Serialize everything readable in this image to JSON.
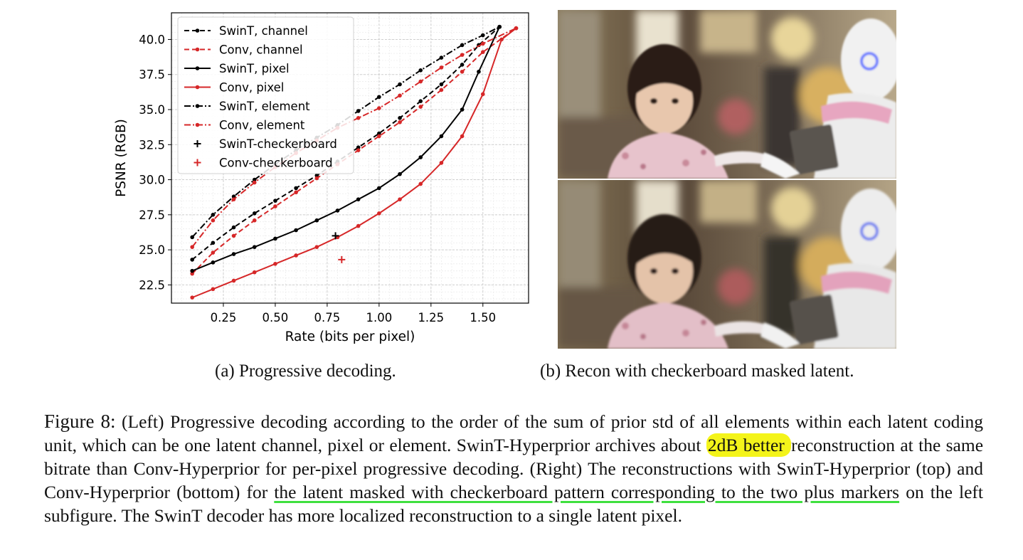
{
  "chart_data": {
    "type": "line",
    "xlabel": "Rate (bits per pixel)",
    "ylabel": "PSNR (RGB)",
    "xlim": [
      0.0,
      1.72
    ],
    "ylim": [
      21.2,
      41.9
    ],
    "xticks": [
      "0.25",
      "0.50",
      "0.75",
      "1.00",
      "1.25",
      "1.50"
    ],
    "yticks": [
      "22.5",
      "25.0",
      "27.5",
      "30.0",
      "32.5",
      "35.0",
      "37.5",
      "40.0"
    ],
    "grid": true,
    "legend_position": "top-left",
    "series": [
      {
        "name": "SwinT, channel",
        "color": "#000000",
        "dash": "dashed",
        "x": [
          0.1,
          0.2,
          0.3,
          0.4,
          0.5,
          0.6,
          0.7,
          0.8,
          0.9,
          1.0,
          1.1,
          1.2,
          1.3,
          1.4,
          1.48,
          1.58
        ],
        "y": [
          24.3,
          25.5,
          26.6,
          27.6,
          28.5,
          29.4,
          30.3,
          31.3,
          32.3,
          33.3,
          34.4,
          35.6,
          36.8,
          38.2,
          39.6,
          40.9
        ]
      },
      {
        "name": "Conv, channel",
        "color": "#d62728",
        "dash": "dashed",
        "x": [
          0.1,
          0.2,
          0.3,
          0.4,
          0.5,
          0.6,
          0.7,
          0.8,
          0.9,
          1.0,
          1.1,
          1.2,
          1.3,
          1.4,
          1.5,
          1.66
        ],
        "y": [
          23.3,
          24.8,
          26.0,
          27.1,
          28.1,
          29.1,
          30.1,
          31.1,
          32.1,
          33.1,
          34.1,
          35.2,
          36.4,
          37.7,
          39.1,
          40.8
        ]
      },
      {
        "name": "SwinT, pixel",
        "color": "#000000",
        "dash": "solid",
        "x": [
          0.1,
          0.2,
          0.3,
          0.4,
          0.5,
          0.6,
          0.7,
          0.8,
          0.9,
          1.0,
          1.1,
          1.2,
          1.3,
          1.4,
          1.48,
          1.58
        ],
        "y": [
          23.5,
          24.1,
          24.7,
          25.2,
          25.8,
          26.4,
          27.1,
          27.8,
          28.6,
          29.4,
          30.4,
          31.6,
          33.1,
          35.0,
          37.7,
          40.9
        ]
      },
      {
        "name": "Conv, pixel",
        "color": "#d62728",
        "dash": "solid",
        "x": [
          0.1,
          0.2,
          0.3,
          0.4,
          0.5,
          0.6,
          0.7,
          0.8,
          0.9,
          1.0,
          1.1,
          1.2,
          1.3,
          1.4,
          1.5,
          1.59,
          1.66
        ],
        "y": [
          21.6,
          22.2,
          22.8,
          23.4,
          24.0,
          24.6,
          25.2,
          25.9,
          26.7,
          27.6,
          28.6,
          29.7,
          31.2,
          33.1,
          36.1,
          40.0,
          40.8
        ]
      },
      {
        "name": "SwinT, element",
        "color": "#000000",
        "dash": "dashdot",
        "x": [
          0.1,
          0.2,
          0.3,
          0.4,
          0.5,
          0.6,
          0.7,
          0.8,
          0.9,
          1.0,
          1.1,
          1.2,
          1.3,
          1.4,
          1.5,
          1.58
        ],
        "y": [
          25.9,
          27.5,
          28.8,
          30.0,
          31.1,
          32.1,
          33.0,
          33.9,
          34.9,
          35.9,
          36.8,
          37.8,
          38.7,
          39.6,
          40.3,
          40.9
        ]
      },
      {
        "name": "Conv, element",
        "color": "#d62728",
        "dash": "dashdot",
        "x": [
          0.1,
          0.2,
          0.3,
          0.4,
          0.5,
          0.6,
          0.7,
          0.8,
          0.9,
          1.0,
          1.1,
          1.2,
          1.3,
          1.4,
          1.5,
          1.66
        ],
        "y": [
          25.2,
          27.1,
          28.6,
          29.8,
          30.9,
          31.9,
          32.8,
          33.7,
          34.4,
          35.1,
          36.0,
          37.0,
          38.0,
          38.9,
          39.7,
          40.8
        ]
      }
    ],
    "markers": [
      {
        "name": "SwinT-checkerboard",
        "color": "#000000",
        "x": 0.79,
        "y": 26.0
      },
      {
        "name": "Conv-checkerboard",
        "color": "#d62728",
        "x": 0.82,
        "y": 24.3
      }
    ]
  },
  "captions": {
    "a": "(a) Progressive decoding.",
    "b": "(b) Recon with checkerboard masked latent."
  },
  "figure_caption": {
    "label": "Figure 8:",
    "part1": "(Left) Progressive decoding according to the order of the sum of prior std of all elements within each latent coding unit, which can be one latent channel, pixel or element. SwinT-Hyperprior archives about ",
    "highlight": "2dB better ",
    "part2": "reconstruction at the same bitrate than Conv-Hyperprior for per-pixel progressive decoding. (Right) The reconstructions with SwinT-Hyperprior (top) and Conv-Hyperprior (bottom) for ",
    "underlined": "the latent masked with checkerboard pattern corresponding to the two plus markers",
    "part3": " on the left subfigure. The SwinT decoder has more localized reconstruction to a single latent pixel."
  }
}
